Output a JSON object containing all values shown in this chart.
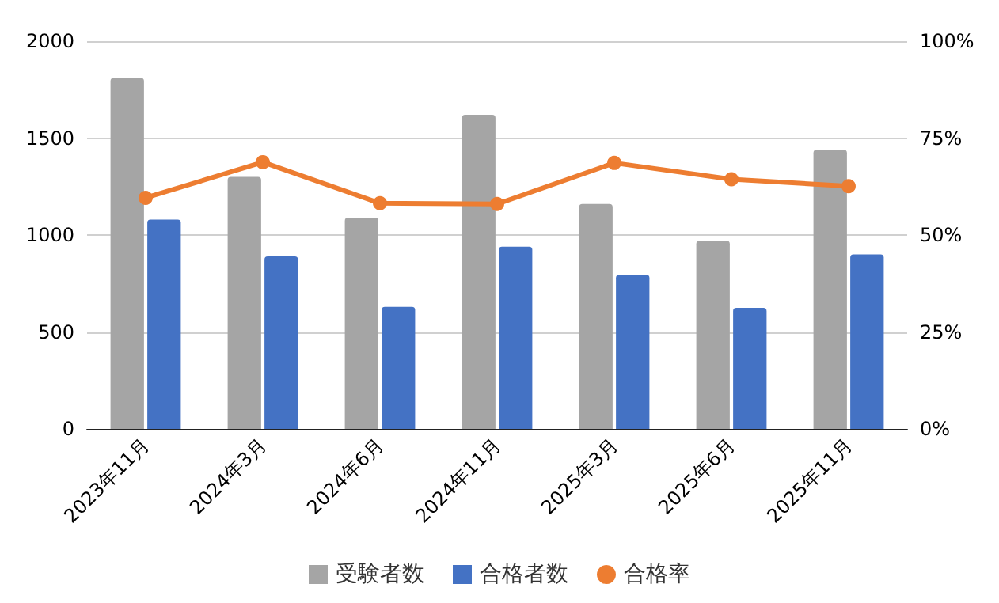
{
  "chart_data": {
    "type": "bar",
    "categories": [
      "2023年11月",
      "2024年3月",
      "2024年6月",
      "2024年11月",
      "2025年3月",
      "2025年6月",
      "2025年11月"
    ],
    "series": [
      {
        "name": "受験者数",
        "color": "#a5a5a5",
        "values": [
          1810,
          1300,
          1090,
          1620,
          1160,
          970,
          1440
        ]
      },
      {
        "name": "合格者数",
        "color": "#4472c4",
        "values": [
          1080,
          890,
          630,
          940,
          795,
          625,
          900
        ]
      },
      {
        "name": "合格率",
        "type": "line",
        "axis": "y2",
        "color": "#ed7d31",
        "marker": "circle",
        "values": [
          59.6,
          68.8,
          58.2,
          58.0,
          68.6,
          64.4,
          62.6
        ]
      }
    ],
    "ylim": [
      0,
      2000
    ],
    "yticks": [
      0,
      500,
      1000,
      1500,
      2000
    ],
    "y2lim": [
      0,
      100
    ],
    "y2ticks": [
      {
        "value": 0,
        "label": "0%"
      },
      {
        "value": 25,
        "label": "25%"
      },
      {
        "value": 50,
        "label": "50%"
      },
      {
        "value": 75,
        "label": "75%"
      },
      {
        "value": 100,
        "label": "100%"
      }
    ],
    "grid": "y",
    "legend": "bottom"
  }
}
